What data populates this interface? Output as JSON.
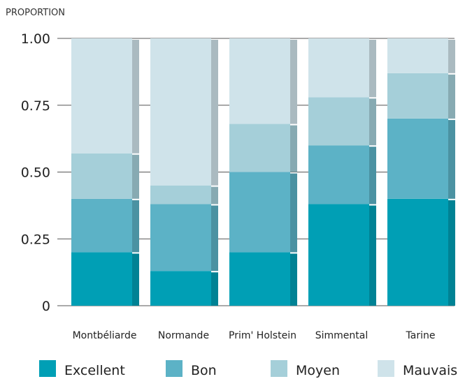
{
  "chart_data": {
    "type": "bar",
    "stacked": true,
    "ylabel": "PROPORTION",
    "ylim": [
      0,
      1
    ],
    "yticks": [
      "0",
      "0.25",
      "0.50",
      "0.75",
      "1.00"
    ],
    "ytick_values": [
      0,
      0.25,
      0.5,
      0.75,
      1.0
    ],
    "categories": [
      "Montbéliarde",
      "Normande",
      "Prim' Holstein",
      "Simmental",
      "Tarine"
    ],
    "series": [
      {
        "name": "Excellent",
        "color": "#009fb5",
        "values": [
          0.2,
          0.13,
          0.2,
          0.38,
          0.4
        ]
      },
      {
        "name": "Bon",
        "color": "#5cb2c6",
        "values": [
          0.2,
          0.25,
          0.3,
          0.22,
          0.3
        ]
      },
      {
        "name": "Moyen",
        "color": "#a5cfd9",
        "values": [
          0.17,
          0.07,
          0.18,
          0.18,
          0.17
        ]
      },
      {
        "name": "Mauvais",
        "color": "#cfe3ea",
        "values": [
          0.43,
          0.55,
          0.32,
          0.22,
          0.13
        ]
      }
    ],
    "grid": true,
    "legend_position": "bottom"
  }
}
